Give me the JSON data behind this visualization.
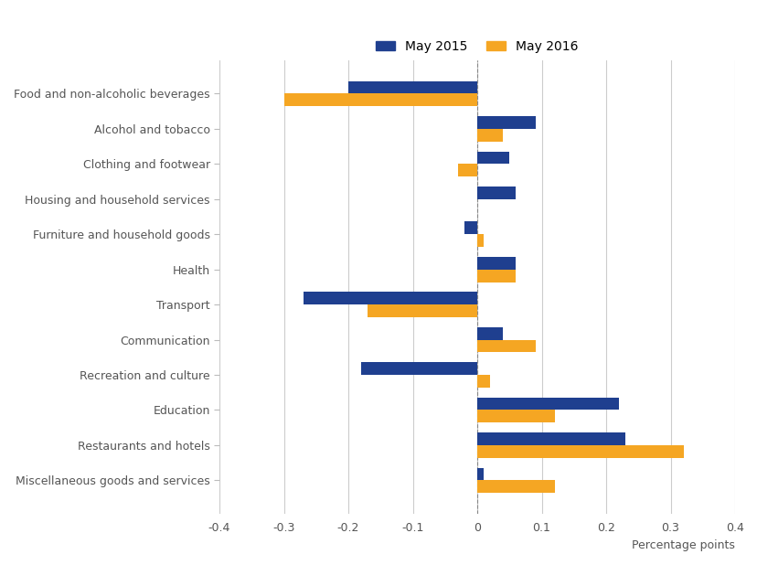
{
  "categories": [
    "Food and non-alcoholic beverages",
    "Alcohol and tobacco",
    "Clothing and footwear",
    "Housing and household services",
    "Furniture and household goods",
    "Health",
    "Transport",
    "Communication",
    "Recreation and culture",
    "Education",
    "Restaurants and hotels",
    "Miscellaneous goods and services"
  ],
  "may2015": [
    -0.2,
    0.09,
    0.05,
    0.06,
    -0.02,
    0.06,
    -0.27,
    0.04,
    -0.18,
    0.22,
    0.23,
    0.01
  ],
  "may2016": [
    -0.3,
    0.04,
    -0.03,
    0.0,
    0.01,
    0.06,
    -0.17,
    0.09,
    0.02,
    0.12,
    0.32,
    0.12
  ],
  "color_2015": "#1f3f8f",
  "color_2016": "#f5a623",
  "xlabel": "Percentage points",
  "legend_2015": "May 2015",
  "legend_2016": "May 2016",
  "xlim": [
    -0.4,
    0.4
  ],
  "xticks": [
    -0.4,
    -0.3,
    -0.2,
    -0.1,
    0,
    0.1,
    0.2,
    0.3,
    0.4
  ],
  "xtick_labels": [
    "-0.4",
    "-0.3",
    "-0.2",
    "-0.1",
    "0",
    "0.1",
    "0.2",
    "0.3",
    "0.4"
  ],
  "bar_height": 0.36,
  "background_color": "#ffffff",
  "grid_color": "#cccccc"
}
